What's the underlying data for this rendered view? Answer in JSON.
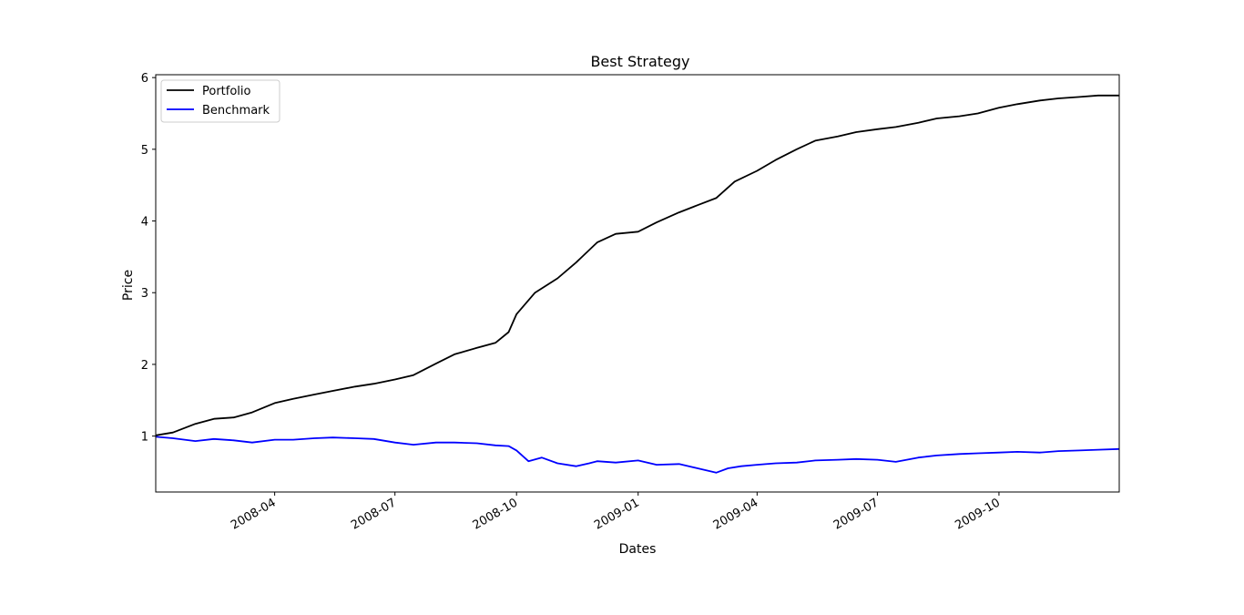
{
  "chart_data": {
    "type": "line",
    "title": "Best Strategy",
    "xlabel": "Dates",
    "ylabel": "Price",
    "x_axis": "date",
    "xlim": [
      "2008-01-02",
      "2009-12-31"
    ],
    "ylim": [
      0.22,
      6.04
    ],
    "x_ticks": [
      "2008-04",
      "2008-07",
      "2008-10",
      "2009-01",
      "2009-04",
      "2009-07",
      "2009-10"
    ],
    "x_tick_dates": [
      "2008-04-01",
      "2008-07-01",
      "2008-10-01",
      "2009-01-01",
      "2009-04-01",
      "2009-07-01",
      "2009-10-01"
    ],
    "y_ticks": [
      1,
      2,
      3,
      4,
      5,
      6
    ],
    "y_tick_labels": [
      "1",
      "2",
      "3",
      "4",
      "5",
      "6"
    ],
    "grid": false,
    "legend": "top-left",
    "series": [
      {
        "name": "Portfolio",
        "color": "#000000",
        "x": [
          "2008-01-02",
          "2008-01-15",
          "2008-02-01",
          "2008-02-15",
          "2008-03-01",
          "2008-03-15",
          "2008-04-01",
          "2008-04-15",
          "2008-05-01",
          "2008-05-15",
          "2008-06-01",
          "2008-06-15",
          "2008-07-01",
          "2008-07-15",
          "2008-08-01",
          "2008-08-15",
          "2008-09-01",
          "2008-09-15",
          "2008-09-25",
          "2008-10-01",
          "2008-10-15",
          "2008-11-01",
          "2008-11-15",
          "2008-12-01",
          "2008-12-15",
          "2009-01-01",
          "2009-01-15",
          "2009-02-01",
          "2009-02-15",
          "2009-03-01",
          "2009-03-15",
          "2009-04-01",
          "2009-04-15",
          "2009-05-01",
          "2009-05-15",
          "2009-06-01",
          "2009-06-15",
          "2009-07-01",
          "2009-07-15",
          "2009-08-01",
          "2009-08-15",
          "2009-09-01",
          "2009-09-15",
          "2009-10-01",
          "2009-10-15",
          "2009-11-01",
          "2009-11-15",
          "2009-12-01",
          "2009-12-15",
          "2009-12-31"
        ],
        "values": [
          1.01,
          1.05,
          1.17,
          1.24,
          1.26,
          1.33,
          1.46,
          1.52,
          1.58,
          1.63,
          1.69,
          1.73,
          1.79,
          1.85,
          2.01,
          2.14,
          2.23,
          2.3,
          2.45,
          2.7,
          3.0,
          3.2,
          3.42,
          3.7,
          3.82,
          3.85,
          3.98,
          4.12,
          4.22,
          4.32,
          4.55,
          4.7,
          4.85,
          5.0,
          5.12,
          5.18,
          5.24,
          5.28,
          5.31,
          5.37,
          5.43,
          5.46,
          5.5,
          5.58,
          5.63,
          5.68,
          5.71,
          5.73,
          5.75,
          5.75
        ]
      },
      {
        "name": "Benchmark",
        "color": "#0000ff",
        "x": [
          "2008-01-02",
          "2008-01-15",
          "2008-02-01",
          "2008-02-15",
          "2008-03-01",
          "2008-03-15",
          "2008-04-01",
          "2008-04-15",
          "2008-05-01",
          "2008-05-15",
          "2008-06-01",
          "2008-06-15",
          "2008-07-01",
          "2008-07-15",
          "2008-08-01",
          "2008-08-15",
          "2008-09-01",
          "2008-09-15",
          "2008-09-25",
          "2008-10-01",
          "2008-10-10",
          "2008-10-20",
          "2008-11-01",
          "2008-11-15",
          "2008-11-25",
          "2008-12-01",
          "2008-12-15",
          "2009-01-01",
          "2009-01-15",
          "2009-02-01",
          "2009-02-15",
          "2009-03-01",
          "2009-03-10",
          "2009-03-20",
          "2009-04-01",
          "2009-04-15",
          "2009-05-01",
          "2009-05-15",
          "2009-06-01",
          "2009-06-15",
          "2009-07-01",
          "2009-07-15",
          "2009-08-01",
          "2009-08-15",
          "2009-09-01",
          "2009-09-15",
          "2009-10-01",
          "2009-10-15",
          "2009-11-01",
          "2009-11-15",
          "2009-12-01",
          "2009-12-15",
          "2009-12-31"
        ],
        "values": [
          0.99,
          0.97,
          0.93,
          0.96,
          0.94,
          0.91,
          0.95,
          0.95,
          0.97,
          0.98,
          0.97,
          0.96,
          0.91,
          0.88,
          0.91,
          0.91,
          0.9,
          0.87,
          0.86,
          0.8,
          0.65,
          0.7,
          0.62,
          0.58,
          0.62,
          0.65,
          0.63,
          0.66,
          0.6,
          0.61,
          0.55,
          0.49,
          0.55,
          0.58,
          0.6,
          0.62,
          0.63,
          0.66,
          0.67,
          0.68,
          0.67,
          0.64,
          0.7,
          0.73,
          0.75,
          0.76,
          0.77,
          0.78,
          0.77,
          0.79,
          0.8,
          0.81,
          0.82
        ]
      }
    ]
  }
}
